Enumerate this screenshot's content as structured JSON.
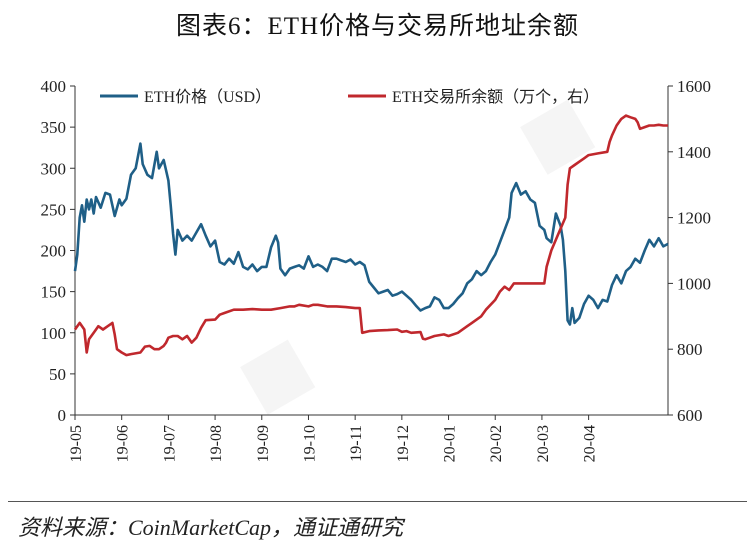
{
  "title": "图表6：ETH价格与交易所地址余额",
  "source": "资料来源：CoinMarketCap，通证通研究",
  "chart_data": {
    "type": "line",
    "grid": false,
    "legend_position": "top",
    "x_ticks": [
      "19-05",
      "19-06",
      "19-07",
      "19-08",
      "19-09",
      "19-10",
      "19-11",
      "19-12",
      "20-01",
      "20-02",
      "20-03",
      "20-04"
    ],
    "y_left": {
      "lim": [
        0,
        400
      ],
      "ticks": [
        0,
        50,
        100,
        150,
        200,
        250,
        300,
        350,
        400
      ]
    },
    "y_right": {
      "lim": [
        600,
        1600
      ],
      "ticks": [
        600,
        800,
        1000,
        1200,
        1400,
        1600
      ]
    },
    "series": [
      {
        "name": "ETH价格（USD）",
        "axis": "left",
        "color": "#1f5f87",
        "points": [
          [
            0.0,
            175
          ],
          [
            0.05,
            195
          ],
          [
            0.1,
            240
          ],
          [
            0.15,
            255
          ],
          [
            0.2,
            235
          ],
          [
            0.25,
            262
          ],
          [
            0.3,
            250
          ],
          [
            0.35,
            262
          ],
          [
            0.4,
            245
          ],
          [
            0.45,
            265
          ],
          [
            0.55,
            252
          ],
          [
            0.65,
            270
          ],
          [
            0.75,
            268
          ],
          [
            0.85,
            242
          ],
          [
            0.95,
            262
          ],
          [
            1.0,
            255
          ],
          [
            1.1,
            263
          ],
          [
            1.2,
            292
          ],
          [
            1.3,
            300
          ],
          [
            1.4,
            330
          ],
          [
            1.45,
            305
          ],
          [
            1.55,
            292
          ],
          [
            1.65,
            288
          ],
          [
            1.75,
            320
          ],
          [
            1.8,
            300
          ],
          [
            1.9,
            310
          ],
          [
            2.0,
            285
          ],
          [
            2.05,
            255
          ],
          [
            2.1,
            220
          ],
          [
            2.15,
            195
          ],
          [
            2.2,
            225
          ],
          [
            2.3,
            212
          ],
          [
            2.4,
            218
          ],
          [
            2.5,
            212
          ],
          [
            2.6,
            222
          ],
          [
            2.7,
            232
          ],
          [
            2.8,
            218
          ],
          [
            2.9,
            205
          ],
          [
            3.0,
            212
          ],
          [
            3.1,
            186
          ],
          [
            3.2,
            183
          ],
          [
            3.3,
            190
          ],
          [
            3.4,
            184
          ],
          [
            3.5,
            198
          ],
          [
            3.6,
            180
          ],
          [
            3.7,
            177
          ],
          [
            3.8,
            183
          ],
          [
            3.9,
            175
          ],
          [
            4.0,
            180
          ],
          [
            4.1,
            180
          ],
          [
            4.2,
            204
          ],
          [
            4.3,
            218
          ],
          [
            4.35,
            210
          ],
          [
            4.4,
            178
          ],
          [
            4.5,
            170
          ],
          [
            4.6,
            178
          ],
          [
            4.7,
            180
          ],
          [
            4.8,
            182
          ],
          [
            4.9,
            178
          ],
          [
            5.0,
            193
          ],
          [
            5.1,
            180
          ],
          [
            5.2,
            183
          ],
          [
            5.3,
            180
          ],
          [
            5.4,
            175
          ],
          [
            5.5,
            190
          ],
          [
            5.6,
            190
          ],
          [
            5.7,
            188
          ],
          [
            5.8,
            186
          ],
          [
            5.9,
            189
          ],
          [
            6.0,
            183
          ],
          [
            6.1,
            186
          ],
          [
            6.2,
            182
          ],
          [
            6.3,
            162
          ],
          [
            6.4,
            155
          ],
          [
            6.5,
            148
          ],
          [
            6.6,
            150
          ],
          [
            6.7,
            152
          ],
          [
            6.8,
            145
          ],
          [
            6.9,
            147
          ],
          [
            7.0,
            150
          ],
          [
            7.1,
            145
          ],
          [
            7.2,
            140
          ],
          [
            7.3,
            133
          ],
          [
            7.4,
            127
          ],
          [
            7.5,
            130
          ],
          [
            7.6,
            132
          ],
          [
            7.7,
            143
          ],
          [
            7.8,
            140
          ],
          [
            7.9,
            130
          ],
          [
            8.0,
            130
          ],
          [
            8.1,
            135
          ],
          [
            8.2,
            142
          ],
          [
            8.3,
            148
          ],
          [
            8.4,
            160
          ],
          [
            8.5,
            165
          ],
          [
            8.6,
            175
          ],
          [
            8.7,
            170
          ],
          [
            8.8,
            175
          ],
          [
            8.9,
            186
          ],
          [
            9.0,
            195
          ],
          [
            9.1,
            210
          ],
          [
            9.2,
            225
          ],
          [
            9.3,
            240
          ],
          [
            9.35,
            270
          ],
          [
            9.45,
            282
          ],
          [
            9.55,
            268
          ],
          [
            9.65,
            272
          ],
          [
            9.75,
            262
          ],
          [
            9.85,
            258
          ],
          [
            9.95,
            230
          ],
          [
            10.05,
            225
          ],
          [
            10.1,
            215
          ],
          [
            10.2,
            210
          ],
          [
            10.3,
            245
          ],
          [
            10.4,
            230
          ],
          [
            10.45,
            213
          ],
          [
            10.5,
            175
          ],
          [
            10.55,
            115
          ],
          [
            10.6,
            110
          ],
          [
            10.65,
            130
          ],
          [
            10.7,
            112
          ],
          [
            10.8,
            118
          ],
          [
            10.9,
            135
          ],
          [
            11.0,
            145
          ],
          [
            11.1,
            140
          ],
          [
            11.2,
            130
          ],
          [
            11.3,
            140
          ],
          [
            11.4,
            138
          ],
          [
            11.5,
            158
          ],
          [
            11.6,
            170
          ],
          [
            11.7,
            160
          ],
          [
            11.8,
            175
          ],
          [
            11.9,
            180
          ],
          [
            12.0,
            190
          ],
          [
            12.1,
            185
          ],
          [
            12.2,
            200
          ],
          [
            12.3,
            213
          ],
          [
            12.4,
            205
          ],
          [
            12.5,
            215
          ],
          [
            12.6,
            205
          ],
          [
            12.7,
            208
          ]
        ]
      },
      {
        "name": "ETH交易所余额（万个，右）",
        "axis": "right",
        "color": "#c0282d",
        "points": [
          [
            0.0,
            860
          ],
          [
            0.05,
            870
          ],
          [
            0.1,
            880
          ],
          [
            0.2,
            860
          ],
          [
            0.25,
            790
          ],
          [
            0.3,
            830
          ],
          [
            0.4,
            850
          ],
          [
            0.5,
            870
          ],
          [
            0.6,
            860
          ],
          [
            0.7,
            870
          ],
          [
            0.8,
            880
          ],
          [
            0.85,
            845
          ],
          [
            0.9,
            800
          ],
          [
            1.0,
            790
          ],
          [
            1.1,
            782
          ],
          [
            1.2,
            785
          ],
          [
            1.4,
            790
          ],
          [
            1.5,
            808
          ],
          [
            1.6,
            810
          ],
          [
            1.7,
            800
          ],
          [
            1.8,
            800
          ],
          [
            1.9,
            810
          ],
          [
            1.95,
            820
          ],
          [
            2.0,
            835
          ],
          [
            2.1,
            840
          ],
          [
            2.2,
            840
          ],
          [
            2.3,
            830
          ],
          [
            2.4,
            840
          ],
          [
            2.5,
            820
          ],
          [
            2.6,
            835
          ],
          [
            2.7,
            865
          ],
          [
            2.8,
            888
          ],
          [
            3.0,
            890
          ],
          [
            3.1,
            905
          ],
          [
            3.2,
            910
          ],
          [
            3.4,
            920
          ],
          [
            3.6,
            920
          ],
          [
            3.8,
            922
          ],
          [
            4.0,
            920
          ],
          [
            4.2,
            920
          ],
          [
            4.4,
            925
          ],
          [
            4.6,
            930
          ],
          [
            4.7,
            930
          ],
          [
            4.8,
            935
          ],
          [
            5.0,
            930
          ],
          [
            5.1,
            935
          ],
          [
            5.2,
            935
          ],
          [
            5.4,
            930
          ],
          [
            5.6,
            930
          ],
          [
            5.8,
            928
          ],
          [
            6.0,
            925
          ],
          [
            6.1,
            925
          ],
          [
            6.15,
            850
          ],
          [
            6.3,
            855
          ],
          [
            6.5,
            857
          ],
          [
            6.7,
            858
          ],
          [
            6.9,
            860
          ],
          [
            7.0,
            853
          ],
          [
            7.1,
            855
          ],
          [
            7.2,
            850
          ],
          [
            7.4,
            852
          ],
          [
            7.45,
            832
          ],
          [
            7.5,
            830
          ],
          [
            7.7,
            840
          ],
          [
            7.9,
            845
          ],
          [
            8.0,
            840
          ],
          [
            8.2,
            850
          ],
          [
            8.4,
            870
          ],
          [
            8.5,
            880
          ],
          [
            8.7,
            900
          ],
          [
            8.8,
            920
          ],
          [
            9.0,
            950
          ],
          [
            9.1,
            975
          ],
          [
            9.2,
            990
          ],
          [
            9.3,
            980
          ],
          [
            9.4,
            1000
          ],
          [
            9.5,
            1000
          ],
          [
            10.0,
            1000
          ],
          [
            10.05,
            1000
          ],
          [
            10.1,
            1050
          ],
          [
            10.2,
            1100
          ],
          [
            10.35,
            1150
          ],
          [
            10.5,
            1200
          ],
          [
            10.55,
            1300
          ],
          [
            10.6,
            1350
          ],
          [
            10.7,
            1360
          ],
          [
            10.8,
            1370
          ],
          [
            10.9,
            1380
          ],
          [
            11.0,
            1390
          ],
          [
            11.2,
            1395
          ],
          [
            11.4,
            1400
          ],
          [
            11.45,
            1430
          ],
          [
            11.5,
            1450
          ],
          [
            11.6,
            1480
          ],
          [
            11.7,
            1500
          ],
          [
            11.8,
            1510
          ],
          [
            11.9,
            1505
          ],
          [
            12.0,
            1500
          ],
          [
            12.05,
            1490
          ],
          [
            12.1,
            1470
          ],
          [
            12.2,
            1475
          ],
          [
            12.3,
            1480
          ],
          [
            12.4,
            1480
          ],
          [
            12.5,
            1482
          ],
          [
            12.6,
            1480
          ],
          [
            12.7,
            1480
          ]
        ]
      }
    ]
  }
}
